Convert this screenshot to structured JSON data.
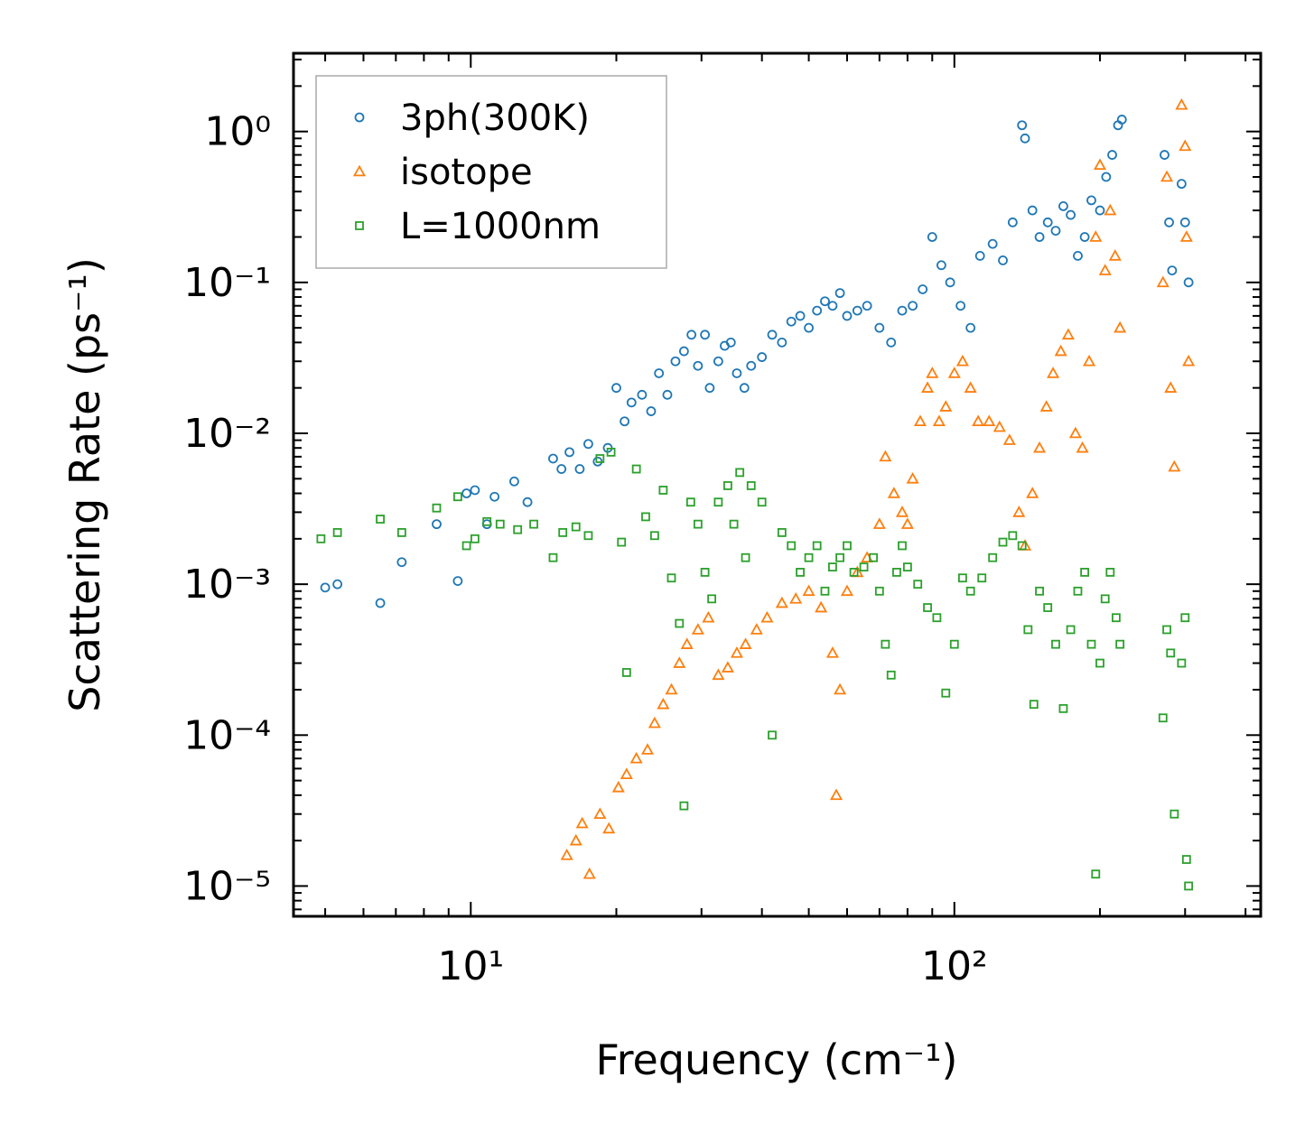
{
  "chart_data": {
    "type": "scatter",
    "xscale": "log",
    "yscale": "log",
    "xlim": [
      4.3,
      430
    ],
    "ylim": [
      6.3e-06,
      3.3
    ],
    "xlabel": "Frequency (cm⁻¹)",
    "ylabel": "Scattering Rate (ps⁻¹)",
    "x_ticks": [
      {
        "value": 10,
        "label": "10¹"
      },
      {
        "value": 100,
        "label": "10²"
      }
    ],
    "y_ticks": [
      {
        "value": 1,
        "label": "10⁰"
      },
      {
        "value": 0.1,
        "label": "10⁻¹"
      },
      {
        "value": 0.01,
        "label": "10⁻²"
      },
      {
        "value": 0.001,
        "label": "10⁻³"
      },
      {
        "value": 0.0001,
        "label": "10⁻⁴"
      },
      {
        "value": 1e-05,
        "label": "10⁻⁵"
      }
    ],
    "legend_position": "top-left",
    "series": [
      {
        "name": "3ph(300K)",
        "marker": "circle",
        "color": "#1f77b4",
        "points": [
          [
            5.0,
            0.00095
          ],
          [
            5.3,
            0.001
          ],
          [
            6.5,
            0.00075
          ],
          [
            7.2,
            0.0014
          ],
          [
            8.5,
            0.0025
          ],
          [
            9.4,
            0.00105
          ],
          [
            9.8,
            0.004
          ],
          [
            10.2,
            0.0042
          ],
          [
            10.8,
            0.0025
          ],
          [
            11.2,
            0.0038
          ],
          [
            12.3,
            0.0048
          ],
          [
            13.1,
            0.0035
          ],
          [
            14.8,
            0.0068
          ],
          [
            15.4,
            0.0058
          ],
          [
            16.0,
            0.0075
          ],
          [
            16.8,
            0.0058
          ],
          [
            17.5,
            0.0085
          ],
          [
            18.3,
            0.0065
          ],
          [
            19.2,
            0.008
          ],
          [
            20.0,
            0.02
          ],
          [
            20.8,
            0.012
          ],
          [
            21.5,
            0.016
          ],
          [
            22.6,
            0.018
          ],
          [
            23.6,
            0.014
          ],
          [
            24.5,
            0.025
          ],
          [
            25.5,
            0.018
          ],
          [
            26.5,
            0.03
          ],
          [
            27.6,
            0.035
          ],
          [
            28.6,
            0.045
          ],
          [
            29.5,
            0.028
          ],
          [
            30.5,
            0.045
          ],
          [
            31.2,
            0.02
          ],
          [
            32.5,
            0.03
          ],
          [
            33.5,
            0.038
          ],
          [
            34.5,
            0.04
          ],
          [
            35.5,
            0.025
          ],
          [
            36.8,
            0.02
          ],
          [
            38.0,
            0.028
          ],
          [
            40.0,
            0.032
          ],
          [
            42.0,
            0.045
          ],
          [
            44.0,
            0.04
          ],
          [
            46.0,
            0.055
          ],
          [
            48.0,
            0.06
          ],
          [
            50.0,
            0.05
          ],
          [
            52.0,
            0.065
          ],
          [
            54.0,
            0.075
          ],
          [
            56.0,
            0.07
          ],
          [
            58.0,
            0.085
          ],
          [
            60.0,
            0.06
          ],
          [
            63.0,
            0.065
          ],
          [
            66.0,
            0.07
          ],
          [
            70.0,
            0.05
          ],
          [
            74.0,
            0.04
          ],
          [
            78.0,
            0.065
          ],
          [
            82.0,
            0.07
          ],
          [
            86.0,
            0.09
          ],
          [
            90.0,
            0.2
          ],
          [
            94.0,
            0.13
          ],
          [
            98.0,
            0.1
          ],
          [
            103.0,
            0.07
          ],
          [
            108.0,
            0.05
          ],
          [
            113.0,
            0.15
          ],
          [
            120.0,
            0.18
          ],
          [
            126.0,
            0.14
          ],
          [
            132.0,
            0.25
          ],
          [
            138.0,
            1.1
          ],
          [
            140.0,
            0.9
          ],
          [
            145.0,
            0.3
          ],
          [
            150.0,
            0.2
          ],
          [
            156.0,
            0.25
          ],
          [
            162.0,
            0.22
          ],
          [
            168.0,
            0.32
          ],
          [
            174.0,
            0.28
          ],
          [
            180.0,
            0.15
          ],
          [
            186.0,
            0.2
          ],
          [
            192.0,
            0.35
          ],
          [
            200.0,
            0.3
          ],
          [
            206.0,
            0.5
          ],
          [
            212.0,
            0.7
          ],
          [
            218.0,
            1.1
          ],
          [
            222.0,
            1.2
          ],
          [
            272.0,
            0.7
          ],
          [
            278.0,
            0.25
          ],
          [
            282.0,
            0.12
          ],
          [
            295.0,
            0.45
          ],
          [
            300.0,
            0.25
          ],
          [
            305.0,
            0.1
          ]
        ]
      },
      {
        "name": "isotope",
        "marker": "triangle",
        "color": "#ff7f0e",
        "points": [
          [
            15.8,
            1.6e-05
          ],
          [
            16.5,
            2e-05
          ],
          [
            17.0,
            2.6e-05
          ],
          [
            17.6,
            1.2e-05
          ],
          [
            18.5,
            3e-05
          ],
          [
            19.3,
            2.4e-05
          ],
          [
            20.2,
            4.5e-05
          ],
          [
            21.0,
            5.5e-05
          ],
          [
            22.0,
            7e-05
          ],
          [
            23.2,
            8e-05
          ],
          [
            24.0,
            0.00012
          ],
          [
            25.0,
            0.00016
          ],
          [
            26.0,
            0.0002
          ],
          [
            27.0,
            0.0003
          ],
          [
            28.0,
            0.0004
          ],
          [
            29.5,
            0.0005
          ],
          [
            31.0,
            0.0006
          ],
          [
            32.5,
            0.00025
          ],
          [
            34.0,
            0.00028
          ],
          [
            35.5,
            0.00035
          ],
          [
            37.0,
            0.0004
          ],
          [
            39.0,
            0.0005
          ],
          [
            41.0,
            0.0006
          ],
          [
            44.0,
            0.00075
          ],
          [
            47.0,
            0.0008
          ],
          [
            50.0,
            0.0009
          ],
          [
            53.0,
            0.0007
          ],
          [
            56.0,
            0.00035
          ],
          [
            57.0,
            4e-05
          ],
          [
            58.0,
            0.0002
          ],
          [
            60.0,
            0.0009
          ],
          [
            63.0,
            0.0012
          ],
          [
            66.0,
            0.0015
          ],
          [
            70.0,
            0.0025
          ],
          [
            72.0,
            0.007
          ],
          [
            75.0,
            0.004
          ],
          [
            78.0,
            0.003
          ],
          [
            80.0,
            0.0025
          ],
          [
            82.0,
            0.005
          ],
          [
            85.0,
            0.012
          ],
          [
            88.0,
            0.02
          ],
          [
            90.0,
            0.025
          ],
          [
            93.0,
            0.012
          ],
          [
            96.0,
            0.015
          ],
          [
            100.0,
            0.025
          ],
          [
            104.0,
            0.03
          ],
          [
            108.0,
            0.02
          ],
          [
            112.0,
            0.012
          ],
          [
            118.0,
            0.012
          ],
          [
            124.0,
            0.011
          ],
          [
            130.0,
            0.009
          ],
          [
            136.0,
            0.003
          ],
          [
            140.0,
            0.0018
          ],
          [
            145.0,
            0.004
          ],
          [
            150.0,
            0.008
          ],
          [
            155.0,
            0.015
          ],
          [
            160.0,
            0.025
          ],
          [
            166.0,
            0.035
          ],
          [
            172.0,
            0.045
          ],
          [
            178.0,
            0.01
          ],
          [
            184.0,
            0.008
          ],
          [
            190.0,
            0.03
          ],
          [
            196.0,
            0.2
          ],
          [
            200.0,
            0.6
          ],
          [
            205.0,
            0.12
          ],
          [
            210.0,
            0.3
          ],
          [
            215.0,
            0.15
          ],
          [
            220.0,
            0.05
          ],
          [
            270.0,
            0.1
          ],
          [
            275.0,
            0.5
          ],
          [
            280.0,
            0.02
          ],
          [
            285.0,
            0.006
          ],
          [
            295.0,
            1.5
          ],
          [
            300.0,
            0.8
          ],
          [
            302.0,
            0.2
          ],
          [
            305.0,
            0.03
          ]
        ]
      },
      {
        "name": "L=1000nm",
        "marker": "square",
        "color": "#2ca02c",
        "points": [
          [
            4.9,
            0.002
          ],
          [
            5.3,
            0.0022
          ],
          [
            6.5,
            0.0027
          ],
          [
            7.2,
            0.0022
          ],
          [
            8.5,
            0.0032
          ],
          [
            9.4,
            0.0038
          ],
          [
            9.8,
            0.0018
          ],
          [
            10.2,
            0.002
          ],
          [
            10.8,
            0.0026
          ],
          [
            11.5,
            0.0025
          ],
          [
            12.5,
            0.0023
          ],
          [
            13.5,
            0.0025
          ],
          [
            14.8,
            0.0015
          ],
          [
            15.5,
            0.0022
          ],
          [
            16.5,
            0.0024
          ],
          [
            17.5,
            0.0021
          ],
          [
            18.5,
            0.0068
          ],
          [
            19.5,
            0.0075
          ],
          [
            20.5,
            0.0019
          ],
          [
            21.0,
            0.00026
          ],
          [
            22.0,
            0.0058
          ],
          [
            23.0,
            0.0028
          ],
          [
            24.0,
            0.0021
          ],
          [
            25.0,
            0.0042
          ],
          [
            26.0,
            0.0011
          ],
          [
            27.0,
            0.00055
          ],
          [
            27.6,
            3.4e-05
          ],
          [
            28.5,
            0.0035
          ],
          [
            29.5,
            0.0025
          ],
          [
            30.5,
            0.0012
          ],
          [
            31.5,
            0.0008
          ],
          [
            32.5,
            0.0035
          ],
          [
            34.0,
            0.0045
          ],
          [
            35.0,
            0.0025
          ],
          [
            36.0,
            0.0055
          ],
          [
            37.0,
            0.0015
          ],
          [
            38.0,
            0.0045
          ],
          [
            40.0,
            0.0035
          ],
          [
            42.0,
            0.0001
          ],
          [
            44.0,
            0.0022
          ],
          [
            46.0,
            0.0018
          ],
          [
            48.0,
            0.0012
          ],
          [
            50.0,
            0.0015
          ],
          [
            52.0,
            0.0018
          ],
          [
            54.0,
            0.0009
          ],
          [
            56.0,
            0.0013
          ],
          [
            58.0,
            0.0015
          ],
          [
            60.0,
            0.0018
          ],
          [
            62.0,
            0.0012
          ],
          [
            65.0,
            0.0013
          ],
          [
            68.0,
            0.0015
          ],
          [
            70.0,
            0.0009
          ],
          [
            72.0,
            0.0004
          ],
          [
            74.0,
            0.00025
          ],
          [
            76.0,
            0.0012
          ],
          [
            78.0,
            0.0018
          ],
          [
            80.0,
            0.0013
          ],
          [
            84.0,
            0.001
          ],
          [
            88.0,
            0.0007
          ],
          [
            92.0,
            0.0006
          ],
          [
            96.0,
            0.00019
          ],
          [
            100.0,
            0.0004
          ],
          [
            104.0,
            0.0011
          ],
          [
            108.0,
            0.0009
          ],
          [
            114.0,
            0.0011
          ],
          [
            120.0,
            0.0015
          ],
          [
            126.0,
            0.0019
          ],
          [
            132.0,
            0.0021
          ],
          [
            138.0,
            0.0018
          ],
          [
            142.0,
            0.0005
          ],
          [
            146.0,
            0.00016
          ],
          [
            150.0,
            0.0009
          ],
          [
            156.0,
            0.0007
          ],
          [
            162.0,
            0.0004
          ],
          [
            168.0,
            0.00015
          ],
          [
            174.0,
            0.0005
          ],
          [
            180.0,
            0.0009
          ],
          [
            186.0,
            0.0012
          ],
          [
            192.0,
            0.0004
          ],
          [
            196.0,
            1.2e-05
          ],
          [
            200.0,
            0.0003
          ],
          [
            205.0,
            0.0008
          ],
          [
            210.0,
            0.0012
          ],
          [
            216.0,
            0.0006
          ],
          [
            220.0,
            0.0004
          ],
          [
            270.0,
            0.00013
          ],
          [
            275.0,
            0.0005
          ],
          [
            280.0,
            0.00035
          ],
          [
            285.0,
            3e-05
          ],
          [
            295.0,
            0.0003
          ],
          [
            300.0,
            0.0006
          ],
          [
            302.0,
            1.5e-05
          ],
          [
            305.0,
            1e-05
          ]
        ]
      }
    ]
  }
}
